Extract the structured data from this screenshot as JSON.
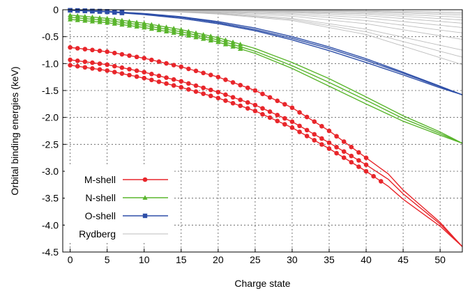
{
  "chart_data": {
    "type": "line",
    "title": "",
    "xlabel": "Charge state",
    "ylabel": "Orbital binding energies (keV)",
    "xlim": [
      -1,
      53
    ],
    "ylim": [
      -4.5,
      0
    ],
    "x_ticks": [
      0,
      5,
      10,
      15,
      20,
      25,
      30,
      35,
      40,
      45,
      50
    ],
    "y_ticks": [
      0,
      -0.5,
      -1.0,
      -1.5,
      -2.0,
      -2.5,
      -3.0,
      -3.5,
      -4.0,
      -4.5
    ],
    "x_tick_labels": [
      "0",
      "5",
      "10",
      "15",
      "20",
      "25",
      "30",
      "35",
      "40",
      "45",
      "50"
    ],
    "y_tick_labels": [
      "0",
      "-0.5",
      "-1.0",
      "-1.5",
      "-2.0",
      "-2.5",
      "-3.0",
      "-3.5",
      "-4.0",
      "-4.5"
    ],
    "grid": true,
    "legend_position": "bottom-left",
    "series": [
      {
        "name": "M-shell",
        "color": "#e8262b",
        "marker": "circle",
        "curves": [
          {
            "x": [
              0,
              5,
              10,
              15,
              20,
              25,
              30,
              35,
              40,
              43,
              45,
              50,
              53
            ],
            "y": [
              -0.7,
              -0.78,
              -0.9,
              -1.06,
              -1.25,
              -1.5,
              -1.82,
              -2.25,
              -2.75,
              -3.05,
              -3.35,
              -3.95,
              -4.4
            ],
            "marker_max_x": 40
          },
          {
            "x": [
              0,
              5,
              10,
              15,
              20,
              25,
              30,
              35,
              40,
              43,
              45,
              50,
              53
            ],
            "y": [
              -0.93,
              -1.02,
              -1.16,
              -1.33,
              -1.53,
              -1.77,
              -2.08,
              -2.47,
              -2.88,
              -3.15,
              -3.42,
              -3.98,
              -4.4
            ],
            "marker_max_x": 40
          },
          {
            "x": [
              0,
              5,
              10,
              15,
              20,
              25,
              30,
              35,
              40,
              43,
              45,
              50,
              53
            ],
            "y": [
              -1.03,
              -1.13,
              -1.27,
              -1.44,
              -1.64,
              -1.88,
              -2.19,
              -2.58,
              -3.0,
              -3.28,
              -3.52,
              -4.02,
              -4.4
            ],
            "marker_max_x": 42
          }
        ]
      },
      {
        "name": "N-shell",
        "color": "#5ab52d",
        "marker": "triangle",
        "curves": [
          {
            "x": [
              0,
              5,
              10,
              15,
              20,
              25,
              30,
              35,
              40,
              45,
              50,
              53
            ],
            "y": [
              -0.1,
              -0.16,
              -0.25,
              -0.37,
              -0.52,
              -0.72,
              -0.98,
              -1.28,
              -1.62,
              -1.97,
              -2.27,
              -2.48
            ],
            "marker_max_x": 23
          },
          {
            "x": [
              0,
              5,
              10,
              15,
              20,
              25,
              30,
              35,
              40,
              45,
              50,
              53
            ],
            "y": [
              -0.14,
              -0.2,
              -0.29,
              -0.41,
              -0.56,
              -0.77,
              -1.04,
              -1.35,
              -1.68,
              -2.02,
              -2.3,
              -2.48
            ],
            "marker_max_x": 23
          },
          {
            "x": [
              0,
              5,
              10,
              15,
              20,
              25,
              30,
              35,
              40,
              45,
              50,
              53
            ],
            "y": [
              -0.18,
              -0.24,
              -0.33,
              -0.45,
              -0.6,
              -0.81,
              -1.09,
              -1.42,
              -1.75,
              -2.07,
              -2.33,
              -2.48
            ],
            "marker_max_x": 23
          }
        ]
      },
      {
        "name": "O-shell",
        "color": "#2e4fa8",
        "marker": "square",
        "curves": [
          {
            "x": [
              0,
              5,
              10,
              15,
              20,
              25,
              30,
              35,
              40,
              45,
              50,
              53
            ],
            "y": [
              -0.01,
              -0.03,
              -0.07,
              -0.13,
              -0.22,
              -0.34,
              -0.5,
              -0.69,
              -0.91,
              -1.16,
              -1.42,
              -1.58
            ],
            "marker_max_x": 7
          },
          {
            "x": [
              0,
              5,
              10,
              15,
              20,
              25,
              30,
              35,
              40,
              45,
              50,
              53
            ],
            "y": [
              -0.01,
              -0.03,
              -0.08,
              -0.14,
              -0.24,
              -0.37,
              -0.53,
              -0.72,
              -0.94,
              -1.18,
              -1.43,
              -1.58
            ],
            "marker_max_x": 7
          },
          {
            "x": [
              0,
              5,
              10,
              15,
              20,
              25,
              30,
              35,
              40,
              45,
              50,
              53
            ],
            "y": [
              -0.01,
              -0.04,
              -0.09,
              -0.16,
              -0.26,
              -0.39,
              -0.56,
              -0.76,
              -0.98,
              -1.21,
              -1.45,
              -1.58
            ],
            "marker_max_x": 7
          }
        ]
      },
      {
        "name": "Rydberg",
        "color": "#bdbdbd",
        "marker": "none",
        "curves": [
          {
            "x": [
              0,
              10,
              20,
              30,
              40,
              53
            ],
            "y": [
              0,
              -0.01,
              -0.06,
              -0.16,
              -0.36,
              -0.75
            ]
          },
          {
            "x": [
              0,
              10,
              20,
              30,
              40,
              53
            ],
            "y": [
              0,
              -0.01,
              -0.07,
              -0.18,
              -0.41,
              -0.88
            ]
          },
          {
            "x": [
              0,
              10,
              20,
              30,
              40,
              53
            ],
            "y": [
              0,
              -0.01,
              -0.08,
              -0.2,
              -0.46,
              -1.02
            ]
          },
          {
            "x": [
              0,
              10,
              20,
              30,
              40,
              53
            ],
            "y": [
              0,
              -0.01,
              -0.05,
              -0.12,
              -0.26,
              -0.55
            ]
          },
          {
            "x": [
              0,
              10,
              20,
              30,
              40,
              53
            ],
            "y": [
              0,
              -0.005,
              -0.04,
              -0.09,
              -0.2,
              -0.43
            ]
          },
          {
            "x": [
              0,
              10,
              20,
              30,
              40,
              53
            ],
            "y": [
              0,
              -0.005,
              -0.03,
              -0.07,
              -0.15,
              -0.33
            ]
          },
          {
            "x": [
              0,
              10,
              20,
              30,
              40,
              53
            ],
            "y": [
              0,
              -0.004,
              -0.02,
              -0.05,
              -0.11,
              -0.25
            ]
          },
          {
            "x": [
              0,
              10,
              20,
              30,
              40,
              53
            ],
            "y": [
              0,
              -0.003,
              -0.015,
              -0.04,
              -0.08,
              -0.19
            ]
          },
          {
            "x": [
              0,
              10,
              20,
              30,
              40,
              53
            ],
            "y": [
              0,
              -0.002,
              -0.01,
              -0.03,
              -0.06,
              -0.14
            ]
          },
          {
            "x": [
              0,
              10,
              20,
              30,
              40,
              53
            ],
            "y": [
              0,
              -0.001,
              -0.007,
              -0.02,
              -0.04,
              -0.1
            ]
          },
          {
            "x": [
              0,
              10,
              20,
              30,
              40,
              53
            ],
            "y": [
              0,
              -0.001,
              -0.005,
              -0.013,
              -0.028,
              -0.07
            ]
          },
          {
            "x": [
              0,
              10,
              20,
              30,
              40,
              53
            ],
            "y": [
              0,
              -0.0005,
              -0.003,
              -0.008,
              -0.018,
              -0.045
            ]
          }
        ]
      }
    ]
  }
}
